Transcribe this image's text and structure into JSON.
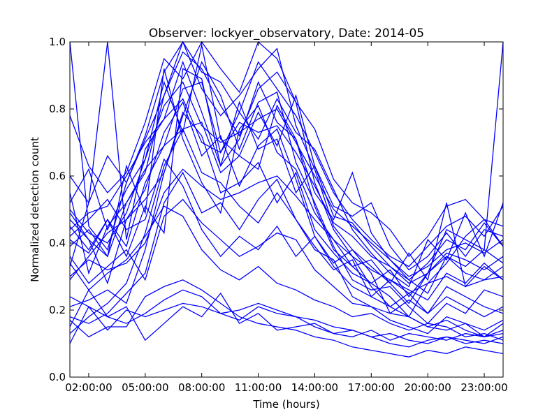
{
  "chart_data": {
    "type": "line",
    "title": "Observer: lockyer_observatory, Date: 2014-05",
    "xlabel": "Time (hours)",
    "ylabel": "Normalized detection count",
    "xlim": [
      1,
      24
    ],
    "ylim": [
      0,
      1
    ],
    "grid": false,
    "legend": "none",
    "line_color": "#0000ff",
    "x": [
      1,
      2,
      3,
      4,
      5,
      6,
      7,
      8,
      9,
      10,
      11,
      12,
      13,
      14,
      15,
      16,
      17,
      18,
      19,
      20,
      21,
      22,
      23,
      24
    ],
    "x_ticks": [
      {
        "value": 2,
        "label": "02:00:00"
      },
      {
        "value": 5,
        "label": "05:00:00"
      },
      {
        "value": 8,
        "label": "08:00:00"
      },
      {
        "value": 11,
        "label": "11:00:00"
      },
      {
        "value": 14,
        "label": "14:00:00"
      },
      {
        "value": 17,
        "label": "17:00:00"
      },
      {
        "value": 20,
        "label": "20:00:00"
      },
      {
        "value": 23,
        "label": "23:00:00"
      }
    ],
    "y_ticks": [
      {
        "value": 0.0,
        "label": "0.0"
      },
      {
        "value": 0.2,
        "label": "0.2"
      },
      {
        "value": 0.4,
        "label": "0.4"
      },
      {
        "value": 0.6,
        "label": "0.6"
      },
      {
        "value": 0.8,
        "label": "0.8"
      },
      {
        "value": 1.0,
        "label": "1.0"
      }
    ],
    "series": [
      {
        "values": [
          1.0,
          0.45,
          0.38,
          0.58,
          0.72,
          0.91,
          1.0,
          0.86,
          0.78,
          0.84,
          0.92,
          0.98,
          0.75,
          0.62,
          0.45,
          0.38,
          0.33,
          0.28,
          0.22,
          0.31,
          0.44,
          0.41,
          0.38,
          1.0
        ]
      },
      {
        "values": [
          0.47,
          0.41,
          0.36,
          0.52,
          0.61,
          0.84,
          0.97,
          0.92,
          0.81,
          0.72,
          0.86,
          0.91,
          0.82,
          0.58,
          0.44,
          0.36,
          0.27,
          0.21,
          0.18,
          0.28,
          0.34,
          0.42,
          0.47,
          0.39
        ]
      },
      {
        "values": [
          0.33,
          0.52,
          1.0,
          0.41,
          0.68,
          0.77,
          0.94,
          0.79,
          0.63,
          0.71,
          0.88,
          0.76,
          0.71,
          0.55,
          0.47,
          0.61,
          0.43,
          0.35,
          0.29,
          0.25,
          0.36,
          0.31,
          0.29,
          0.33
        ]
      },
      {
        "values": [
          0.52,
          0.62,
          0.44,
          0.56,
          0.65,
          0.88,
          0.73,
          0.99,
          0.71,
          0.66,
          0.79,
          0.69,
          0.84,
          0.63,
          0.51,
          0.48,
          0.52,
          0.39,
          0.32,
          0.36,
          0.43,
          0.36,
          0.44,
          0.42
        ]
      },
      {
        "values": [
          0.41,
          0.37,
          0.47,
          0.39,
          0.58,
          0.69,
          0.86,
          0.88,
          0.67,
          0.79,
          0.71,
          0.83,
          0.73,
          0.68,
          0.56,
          0.44,
          0.37,
          0.31,
          0.27,
          0.41,
          0.35,
          0.49,
          0.36,
          0.52
        ]
      },
      {
        "values": [
          0.21,
          0.23,
          0.26,
          0.22,
          0.38,
          0.61,
          0.78,
          0.94,
          0.84,
          0.68,
          0.82,
          0.85,
          0.64,
          0.52,
          0.39,
          0.29,
          0.26,
          0.27,
          0.21,
          0.16,
          0.22,
          0.19,
          0.26,
          0.24
        ]
      },
      {
        "values": [
          0.13,
          0.18,
          0.22,
          0.28,
          0.43,
          0.63,
          0.74,
          0.76,
          0.61,
          0.66,
          0.62,
          0.81,
          0.71,
          0.51,
          0.38,
          0.33,
          0.28,
          0.24,
          0.18,
          0.15,
          0.17,
          0.14,
          0.12,
          0.16
        ]
      },
      {
        "values": [
          0.39,
          0.44,
          0.36,
          0.63,
          0.49,
          0.92,
          0.71,
          0.58,
          0.49,
          0.74,
          0.81,
          0.67,
          0.62,
          0.49,
          0.41,
          0.33,
          0.35,
          0.28,
          0.37,
          0.29,
          0.52,
          0.27,
          0.33,
          0.29
        ]
      },
      {
        "values": [
          0.29,
          0.36,
          0.43,
          0.47,
          0.56,
          0.73,
          0.82,
          0.66,
          0.72,
          0.57,
          0.69,
          0.74,
          0.59,
          0.42,
          0.34,
          0.38,
          0.31,
          0.19,
          0.23,
          0.19,
          0.27,
          0.24,
          0.21,
          0.19
        ]
      },
      {
        "values": [
          0.18,
          0.16,
          0.19,
          0.25,
          0.31,
          0.52,
          0.61,
          0.49,
          0.52,
          0.44,
          0.53,
          0.59,
          0.47,
          0.38,
          0.35,
          0.24,
          0.21,
          0.17,
          0.15,
          0.13,
          0.18,
          0.16,
          0.14,
          0.17
        ]
      },
      {
        "values": [
          0.45,
          0.38,
          0.47,
          0.36,
          0.51,
          0.43,
          0.92,
          0.89,
          0.63,
          0.82,
          0.68,
          0.71,
          0.55,
          0.63,
          0.48,
          0.46,
          0.39,
          0.33,
          0.29,
          0.34,
          0.41,
          0.38,
          0.46,
          0.39
        ]
      },
      {
        "values": [
          0.36,
          0.28,
          0.33,
          0.38,
          0.29,
          0.48,
          0.53,
          0.46,
          0.41,
          0.36,
          0.39,
          0.43,
          0.41,
          0.32,
          0.27,
          0.22,
          0.21,
          0.19,
          0.18,
          0.15,
          0.14,
          0.16,
          0.12,
          0.13
        ]
      },
      {
        "values": [
          0.17,
          0.12,
          0.15,
          0.15,
          0.24,
          0.27,
          0.29,
          0.26,
          0.22,
          0.18,
          0.16,
          0.15,
          0.14,
          0.12,
          0.11,
          0.09,
          0.08,
          0.07,
          0.06,
          0.08,
          0.07,
          0.09,
          0.08,
          0.07
        ]
      },
      {
        "values": [
          0.49,
          0.41,
          0.28,
          0.47,
          0.53,
          0.61,
          0.79,
          0.72,
          0.55,
          0.58,
          0.64,
          0.52,
          0.61,
          0.44,
          0.37,
          0.31,
          0.28,
          0.32,
          0.24,
          0.31,
          0.36,
          0.33,
          0.38,
          0.34
        ]
      },
      {
        "values": [
          0.15,
          0.26,
          0.18,
          0.21,
          0.11,
          0.16,
          0.21,
          0.18,
          0.25,
          0.16,
          0.19,
          0.14,
          0.15,
          0.16,
          0.13,
          0.12,
          0.14,
          0.11,
          0.13,
          0.12,
          0.11,
          0.13,
          0.12,
          0.14
        ]
      },
      {
        "values": [
          0.55,
          0.31,
          0.45,
          0.52,
          0.62,
          0.69,
          0.74,
          0.61,
          0.58,
          0.51,
          0.46,
          0.55,
          0.47,
          0.39,
          0.32,
          0.35,
          0.24,
          0.29,
          0.26,
          0.23,
          0.31,
          0.28,
          0.34,
          0.29
        ]
      },
      {
        "values": [
          0.42,
          0.47,
          0.53,
          0.44,
          0.47,
          0.65,
          0.57,
          0.44,
          0.36,
          0.42,
          0.38,
          0.45,
          0.36,
          0.42,
          0.33,
          0.27,
          0.24,
          0.21,
          0.25,
          0.19,
          0.24,
          0.21,
          0.18,
          0.21
        ]
      },
      {
        "values": [
          0.34,
          0.26,
          0.31,
          0.35,
          0.42,
          0.51,
          0.48,
          0.38,
          0.32,
          0.29,
          0.33,
          0.28,
          0.26,
          0.23,
          0.21,
          0.18,
          0.19,
          0.16,
          0.14,
          0.16,
          0.15,
          0.12,
          0.13,
          0.11
        ]
      },
      {
        "values": [
          0.24,
          0.21,
          0.18,
          0.16,
          0.19,
          0.23,
          0.26,
          0.24,
          0.19,
          0.17,
          0.21,
          0.19,
          0.18,
          0.15,
          0.13,
          0.14,
          0.12,
          0.1,
          0.09,
          0.11,
          0.12,
          0.1,
          0.11,
          0.1
        ]
      },
      {
        "values": [
          0.6,
          0.52,
          0.66,
          0.58,
          0.71,
          0.84,
          1.0,
          0.91,
          0.88,
          0.79,
          0.94,
          0.86,
          0.78,
          0.67,
          0.55,
          0.47,
          0.41,
          0.36,
          0.33,
          0.39,
          0.45,
          0.48,
          0.42,
          0.51
        ]
      },
      {
        "values": [
          0.78,
          0.63,
          0.55,
          0.61,
          0.76,
          0.95,
          0.89,
          1.0,
          0.92,
          0.85,
          1.0,
          0.95,
          0.82,
          0.74,
          0.59,
          0.52,
          0.49,
          0.44,
          0.36,
          0.42,
          0.51,
          0.53,
          0.47,
          0.45
        ]
      },
      {
        "values": [
          0.5,
          0.43,
          0.4,
          0.49,
          0.65,
          0.81,
          0.88,
          0.75,
          0.7,
          0.73,
          0.77,
          0.8,
          0.7,
          0.6,
          0.5,
          0.45,
          0.4,
          0.35,
          0.3,
          0.33,
          0.38,
          0.4,
          0.37,
          0.41
        ]
      },
      {
        "values": [
          0.3,
          0.35,
          0.32,
          0.34,
          0.4,
          0.55,
          0.62,
          0.57,
          0.53,
          0.55,
          0.58,
          0.6,
          0.54,
          0.47,
          0.41,
          0.36,
          0.32,
          0.29,
          0.25,
          0.28,
          0.3,
          0.27,
          0.29,
          0.3
        ]
      },
      {
        "values": [
          0.44,
          0.49,
          0.51,
          0.6,
          0.7,
          0.77,
          0.83,
          0.7,
          0.67,
          0.76,
          0.73,
          0.75,
          0.67,
          0.57,
          0.46,
          0.42,
          0.36,
          0.33,
          0.28,
          0.31,
          0.37,
          0.35,
          0.32,
          0.36
        ]
      },
      {
        "values": [
          0.1,
          0.21,
          0.14,
          0.2,
          0.18,
          0.2,
          0.22,
          0.21,
          0.19,
          0.2,
          0.22,
          0.2,
          0.18,
          0.17,
          0.15,
          0.14,
          0.12,
          0.13,
          0.11,
          0.1,
          0.12,
          0.11,
          0.1,
          0.12
        ]
      }
    ]
  }
}
